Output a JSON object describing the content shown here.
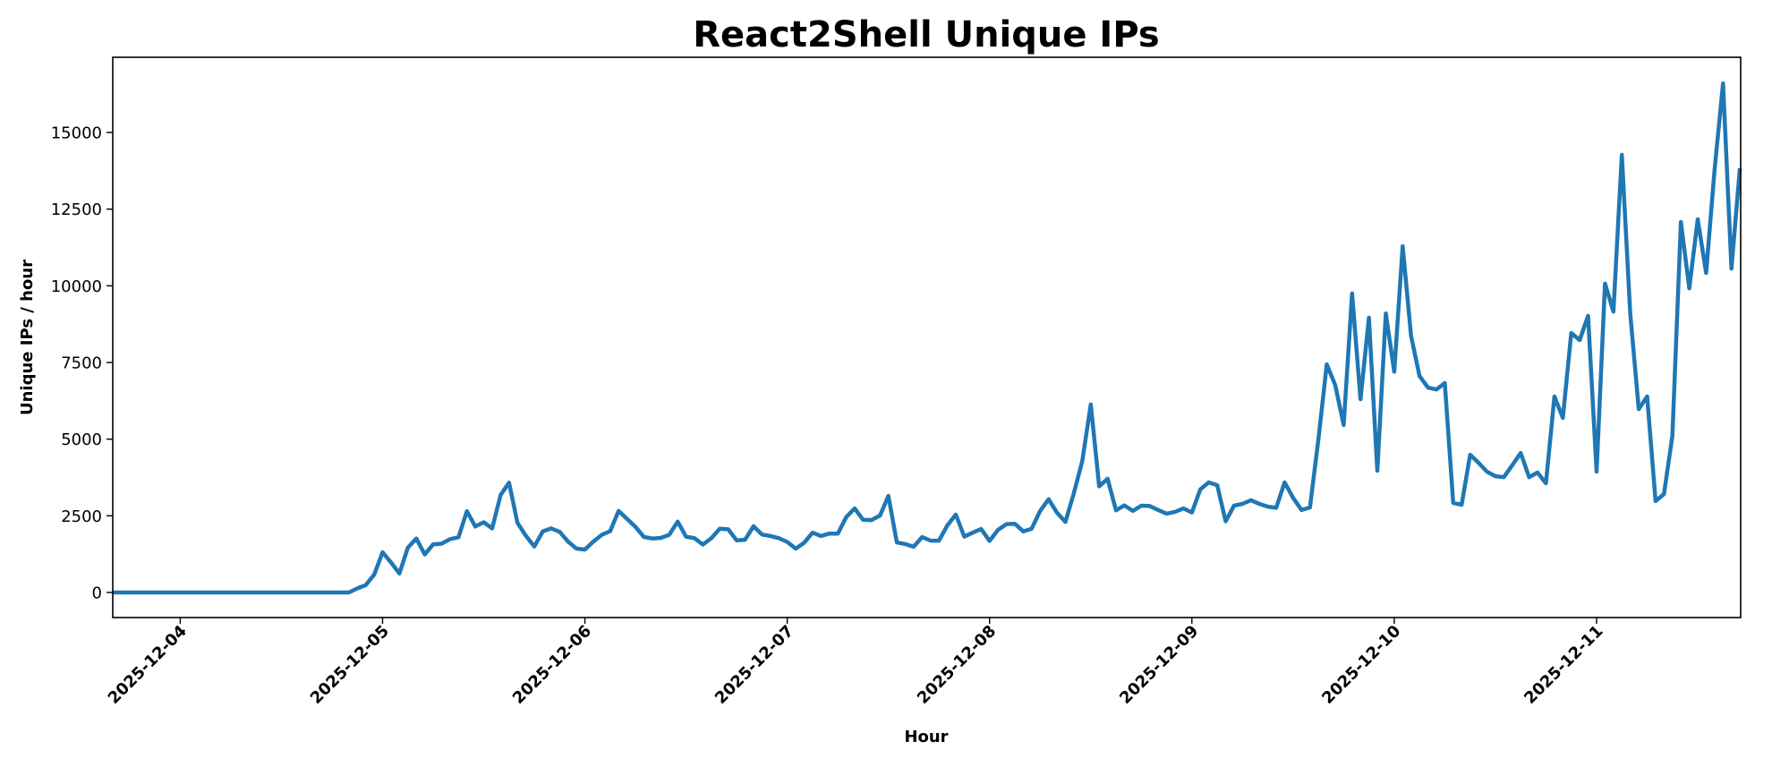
{
  "chart_data": {
    "type": "line",
    "title": "React2Shell Unique IPs",
    "xlabel": "Hour",
    "ylabel": "Unique IPs / hour",
    "x_start": "2025-12-03 16:00",
    "x_end": "2025-12-11 17:00",
    "x_interval": "1 hour",
    "x_tick_labels": [
      "2025-12-04",
      "2025-12-05",
      "2025-12-06",
      "2025-12-07",
      "2025-12-08",
      "2025-12-09",
      "2025-12-10",
      "2025-12-11"
    ],
    "y_ticks": [
      0,
      2500,
      5000,
      7500,
      10000,
      12500,
      15000
    ],
    "y_tick_labels": [
      "0",
      "2500",
      "5000",
      "7500",
      "10000",
      "12500",
      "15000"
    ],
    "ylim": [
      -820,
      17450
    ],
    "grid": false,
    "legend": null,
    "series": [
      {
        "name": "Unique IPs / hour",
        "color": "#1f77b4",
        "values": [
          0,
          0,
          0,
          0,
          0,
          0,
          0,
          0,
          0,
          0,
          0,
          0,
          0,
          0,
          0,
          0,
          0,
          0,
          0,
          0,
          0,
          0,
          0,
          0,
          0,
          0,
          0,
          0,
          0,
          130,
          240,
          580,
          1310,
          980,
          620,
          1460,
          1760,
          1240,
          1570,
          1590,
          1740,
          1800,
          2650,
          2150,
          2290,
          2090,
          3180,
          3580,
          2270,
          1850,
          1500,
          1990,
          2090,
          1980,
          1660,
          1430,
          1400,
          1660,
          1880,
          2000,
          2660,
          2400,
          2140,
          1810,
          1760,
          1780,
          1880,
          2310,
          1820,
          1770,
          1560,
          1770,
          2080,
          2060,
          1700,
          1720,
          2160,
          1890,
          1840,
          1770,
          1650,
          1430,
          1620,
          1950,
          1840,
          1920,
          1920,
          2460,
          2740,
          2370,
          2360,
          2510,
          3150,
          1630,
          1580,
          1490,
          1810,
          1690,
          1690,
          2190,
          2540,
          1820,
          1950,
          2070,
          1680,
          2040,
          2230,
          2240,
          1990,
          2080,
          2660,
          3040,
          2600,
          2300,
          3240,
          4280,
          6130,
          3460,
          3710,
          2680,
          2840,
          2660,
          2830,
          2820,
          2690,
          2570,
          2630,
          2740,
          2610,
          3360,
          3590,
          3500,
          2320,
          2830,
          2890,
          3010,
          2890,
          2800,
          2760,
          3590,
          3090,
          2690,
          2770,
          4980,
          7440,
          6770,
          5460,
          9750,
          6300,
          8960,
          3970,
          9100,
          7200,
          11290,
          8370,
          7060,
          6680,
          6620,
          6830,
          2920,
          2860,
          4490,
          4230,
          3940,
          3790,
          3760,
          4150,
          4550,
          3760,
          3910,
          3560,
          6390,
          5690,
          8460,
          8230,
          9020,
          3940,
          10070,
          9160,
          14270,
          9100,
          5980,
          6390,
          2980,
          3210,
          5110,
          12080,
          9920,
          12170,
          10420,
          13770,
          16600,
          10560,
          13830
        ]
      }
    ]
  }
}
